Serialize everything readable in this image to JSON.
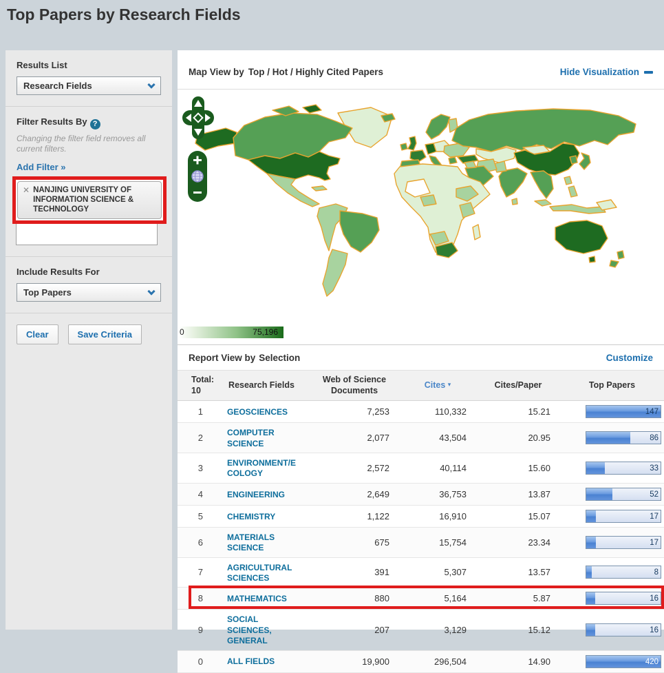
{
  "page": {
    "title": "Top Papers by Research Fields"
  },
  "sidebar": {
    "results_list_label": "Results List",
    "results_list_value": "Research Fields",
    "filter_label": "Filter Results By",
    "help_icon": "?",
    "filter_note": "Changing the filter field removes all current filters.",
    "add_filter_link": "Add Filter »",
    "filter_tag_remove": "✕",
    "filter_tag_text": "NANJING UNIVERSITY OF INFORMATION SCIENCE & TECHNOLOGY",
    "filter_input_value": "",
    "include_label": "Include Results For",
    "include_value": "Top Papers",
    "clear_button": "Clear",
    "save_button": "Save Criteria"
  },
  "viz": {
    "title_prefix": "Map View by",
    "title_value": "Top / Hot / Highly Cited Papers",
    "hide_link": "Hide Visualization",
    "legend_min": "0",
    "legend_max": "75,196",
    "controls": {
      "zoom_in": "+",
      "zoom_out": "−"
    }
  },
  "report": {
    "title_prefix": "Report View by",
    "title_value": "Selection",
    "customize_link": "Customize",
    "header": {
      "total_label": "Total:",
      "total_value": "10",
      "col_field": "Research Fields",
      "col_docs": "Web of Science Documents",
      "col_cites": "Cites",
      "sort_icon": "▾",
      "col_cpp": "Cites/Paper",
      "col_top": "Top Papers"
    },
    "rows": [
      {
        "rank": "1",
        "field_lines": [
          "GEOSCIENCES"
        ],
        "docs": "7,253",
        "cites": "110,332",
        "cpp": "15.21",
        "top": "147",
        "bar_pct": 100,
        "bar_light_text": false,
        "annotated": false
      },
      {
        "rank": "2",
        "field_lines": [
          "COMPUTER",
          "SCIENCE"
        ],
        "docs": "2,077",
        "cites": "43,504",
        "cpp": "20.95",
        "top": "86",
        "bar_pct": 59,
        "bar_light_text": false,
        "annotated": false
      },
      {
        "rank": "3",
        "field_lines": [
          "ENVIRONMENT/E",
          "COLOGY"
        ],
        "docs": "2,572",
        "cites": "40,114",
        "cpp": "15.60",
        "top": "33",
        "bar_pct": 25,
        "bar_light_text": false,
        "annotated": false
      },
      {
        "rank": "4",
        "field_lines": [
          "ENGINEERING"
        ],
        "docs": "2,649",
        "cites": "36,753",
        "cpp": "13.87",
        "top": "52",
        "bar_pct": 35,
        "bar_light_text": false,
        "annotated": false
      },
      {
        "rank": "5",
        "field_lines": [
          "CHEMISTRY"
        ],
        "docs": "1,122",
        "cites": "16,910",
        "cpp": "15.07",
        "top": "17",
        "bar_pct": 13,
        "bar_light_text": false,
        "annotated": false
      },
      {
        "rank": "6",
        "field_lines": [
          "MATERIALS",
          "SCIENCE"
        ],
        "docs": "675",
        "cites": "15,754",
        "cpp": "23.34",
        "top": "17",
        "bar_pct": 13,
        "bar_light_text": false,
        "annotated": false
      },
      {
        "rank": "7",
        "field_lines": [
          "AGRICULTURAL",
          "SCIENCES"
        ],
        "docs": "391",
        "cites": "5,307",
        "cpp": "13.57",
        "top": "8",
        "bar_pct": 7,
        "bar_light_text": false,
        "annotated": false
      },
      {
        "rank": "8",
        "field_lines": [
          "MATHEMATICS"
        ],
        "docs": "880",
        "cites": "5,164",
        "cpp": "5.87",
        "top": "16",
        "bar_pct": 12,
        "bar_light_text": false,
        "annotated": true
      },
      {
        "rank": "9",
        "field_lines": [
          "SOCIAL",
          "SCIENCES,",
          "GENERAL"
        ],
        "docs": "207",
        "cites": "3,129",
        "cpp": "15.12",
        "top": "16",
        "bar_pct": 12,
        "bar_light_text": false,
        "annotated": false
      },
      {
        "rank": "0",
        "field_lines": [
          "ALL FIELDS"
        ],
        "docs": "19,900",
        "cites": "296,504",
        "cpp": "14.90",
        "top": "420",
        "bar_pct": 100,
        "bar_light_text": true,
        "annotated": false
      }
    ]
  },
  "colors": {
    "page_bg": "#ccd4da",
    "sidebar_bg": "#e9e9e9",
    "panel_bg": "#ffffff",
    "link_blue": "#1d6fae",
    "field_link_teal": "#0e6e9c",
    "sort_blue": "#4a86c8",
    "annotation_red": "#e01c1c",
    "bar_fill_blue": "#5e93dc",
    "bar_track": "#d9e3f2",
    "map_palette": {
      "dark": "#1E6B21",
      "meddark": "#2E7D32",
      "med": "#55A055",
      "light": "#A8D39F",
      "pale": "#DFF0D5",
      "none": "#FFFFFF",
      "border": "#E8A42F",
      "control_green": "#1A5B1E"
    },
    "legend_gradient_start": "#FFFFFF",
    "legend_gradient_end": "#1A6B1A"
  },
  "chart_data": [
    {
      "type": "table",
      "title": "Report View by Selection",
      "columns": [
        "Rank",
        "Research Fields",
        "Web of Science Documents",
        "Cites",
        "Cites/Paper",
        "Top Papers"
      ],
      "sorted_by": "Cites",
      "rows": [
        [
          1,
          "GEOSCIENCES",
          7253,
          110332,
          15.21,
          147
        ],
        [
          2,
          "COMPUTER SCIENCE",
          2077,
          43504,
          20.95,
          86
        ],
        [
          3,
          "ENVIRONMENT/ECOLOGY",
          2572,
          40114,
          15.6,
          33
        ],
        [
          4,
          "ENGINEERING",
          2649,
          36753,
          13.87,
          52
        ],
        [
          5,
          "CHEMISTRY",
          1122,
          16910,
          15.07,
          17
        ],
        [
          6,
          "MATERIALS SCIENCE",
          675,
          15754,
          23.34,
          17
        ],
        [
          7,
          "AGRICULTURAL SCIENCES",
          391,
          5307,
          13.57,
          8
        ],
        [
          8,
          "MATHEMATICS",
          880,
          5164,
          5.87,
          16
        ],
        [
          9,
          "SOCIAL SCIENCES, GENERAL",
          207,
          3129,
          15.12,
          16
        ],
        [
          0,
          "ALL FIELDS",
          19900,
          296504,
          14.9,
          420
        ]
      ]
    },
    {
      "type": "heatmap",
      "subtype": "world-choropleth",
      "title": "Map View by Top / Hot / Highly Cited Papers",
      "legend_min": 0,
      "legend_max": 75196,
      "high_value_regions": [
        "United States",
        "China",
        "Germany",
        "Australia"
      ],
      "medium_value_regions": [
        "Canada",
        "Russia",
        "Brazil",
        "India",
        "United Kingdom",
        "France",
        "Spain",
        "Japan",
        "Saudi Arabia",
        "South Africa",
        "New Zealand"
      ],
      "low_value_regions": [
        "Mexico",
        "Argentina",
        "Central Asia",
        "Most of Africa",
        "Greenland",
        "Mongolia",
        "Indonesia"
      ]
    }
  ]
}
